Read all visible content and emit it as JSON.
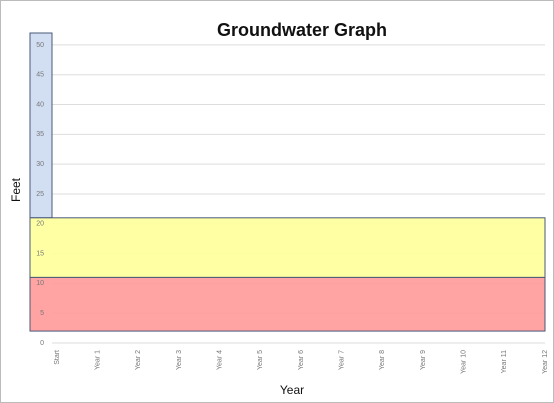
{
  "chart_data": {
    "type": "band",
    "title": "Groundwater Graph",
    "x_label": "Year",
    "y_label": "Feet",
    "categories": [
      "Start",
      "Year 1",
      "Year 2",
      "Year 3",
      "Year 4",
      "Year 5",
      "Year 6",
      "Year 7",
      "Year 8",
      "Year 9",
      "Year 10",
      "Year 11",
      "Year 12"
    ],
    "bands": [
      {
        "from": 21,
        "to": 52,
        "color": "#cddcf2",
        "span": "axis"
      },
      {
        "from": 11,
        "to": 21,
        "color": "#ffff99",
        "span": "full"
      },
      {
        "from": 2,
        "to": 11,
        "color": "#ff9999",
        "span": "full"
      }
    ],
    "ylim": [
      0,
      52
    ],
    "yticks": [
      0,
      5,
      10,
      15,
      20,
      25,
      30,
      35,
      40,
      45,
      50
    ],
    "grid": true
  }
}
